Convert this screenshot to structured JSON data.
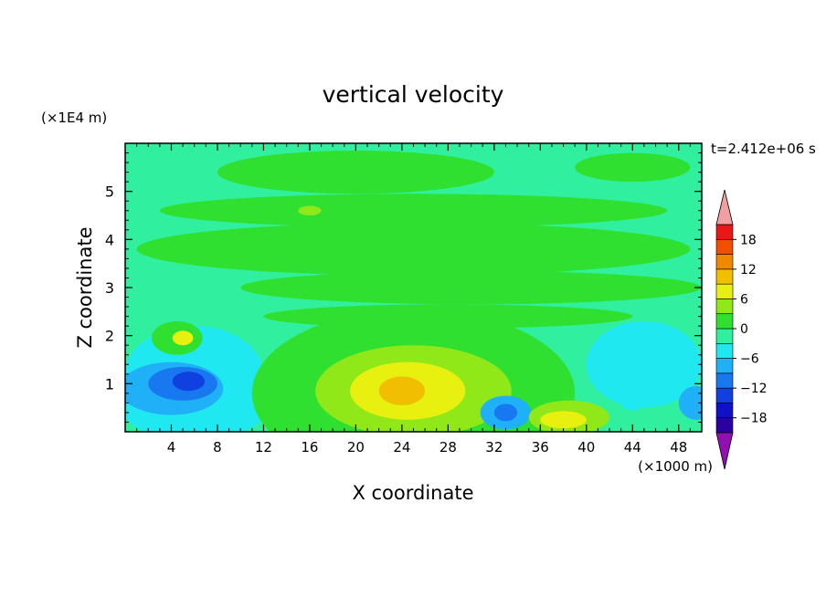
{
  "chart_data": {
    "type": "heatmap",
    "title": "vertical velocity",
    "time_label": "t=2.412e+06 s",
    "xlabel": "X coordinate",
    "ylabel": "Z coordinate",
    "x_unit": "(×1000 m)",
    "y_unit": "(×1E4 m)",
    "xlim": [
      0,
      50
    ],
    "ylim": [
      0,
      6
    ],
    "x_ticks": [
      4,
      8,
      12,
      16,
      20,
      24,
      28,
      32,
      36,
      40,
      44,
      48
    ],
    "y_ticks": [
      1,
      2,
      3,
      4,
      5
    ],
    "grid": false,
    "background_value": -2,
    "regions": [
      {
        "x": 6,
        "z": 0.6,
        "rx": 6.5,
        "rz": 0.8,
        "value": -5
      },
      {
        "x": 6,
        "z": 1.2,
        "rx": 6.0,
        "rz": 1.0,
        "value": -6
      },
      {
        "x": 4,
        "z": 0.9,
        "rx": 4.5,
        "rz": 0.55,
        "value": -9
      },
      {
        "x": 5,
        "z": 1.0,
        "rx": 3.0,
        "rz": 0.35,
        "value": -12
      },
      {
        "x": 5.5,
        "z": 1.05,
        "rx": 1.4,
        "rz": 0.2,
        "value": -14
      },
      {
        "x": 4.5,
        "z": 1.95,
        "rx": 2.2,
        "rz": 0.35,
        "value": 2
      },
      {
        "x": 5,
        "z": 1.95,
        "rx": 0.9,
        "rz": 0.15,
        "value": 6
      },
      {
        "x": 25,
        "z": 0.8,
        "rx": 14.0,
        "rz": 1.75,
        "value": 0
      },
      {
        "x": 25,
        "z": 0.8,
        "rx": 11.0,
        "rz": 1.35,
        "value": 2
      },
      {
        "x": 25,
        "z": 0.85,
        "rx": 8.5,
        "rz": 0.95,
        "value": 5
      },
      {
        "x": 24.5,
        "z": 0.85,
        "rx": 5.0,
        "rz": 0.6,
        "value": 8
      },
      {
        "x": 24,
        "z": 0.85,
        "rx": 2.0,
        "rz": 0.3,
        "value": 11
      },
      {
        "x": 33,
        "z": 0.4,
        "rx": 2.2,
        "rz": 0.35,
        "value": -8
      },
      {
        "x": 33,
        "z": 0.4,
        "rx": 1.0,
        "rz": 0.18,
        "value": -12
      },
      {
        "x": 38.5,
        "z": 0.3,
        "rx": 3.5,
        "rz": 0.35,
        "value": 3
      },
      {
        "x": 38,
        "z": 0.25,
        "rx": 2.0,
        "rz": 0.18,
        "value": 6
      },
      {
        "x": 45,
        "z": 1.4,
        "rx": 5.0,
        "rz": 0.9,
        "value": -4
      },
      {
        "x": 46,
        "z": 1.2,
        "rx": 2.5,
        "rz": 0.4,
        "value": -6
      },
      {
        "x": 49.5,
        "z": 0.6,
        "rx": 1.5,
        "rz": 0.35,
        "value": -8
      },
      {
        "x": 44,
        "z": 0.6,
        "rx": 1.0,
        "rz": 0.15,
        "value": -6
      },
      {
        "x": 20,
        "z": 5.4,
        "rx": 12.0,
        "rz": 0.45,
        "value": 0
      },
      {
        "x": 25,
        "z": 4.6,
        "rx": 22.0,
        "rz": 0.35,
        "value": 0
      },
      {
        "x": 25,
        "z": 3.8,
        "rx": 24.0,
        "rz": 0.55,
        "value": 0
      },
      {
        "x": 30,
        "z": 3.0,
        "rx": 20.0,
        "rz": 0.35,
        "value": 0
      },
      {
        "x": 44,
        "z": 5.5,
        "rx": 5.0,
        "rz": 0.3,
        "value": 0
      },
      {
        "x": 16,
        "z": 4.6,
        "rx": 1.0,
        "rz": 0.1,
        "value": 4
      },
      {
        "x": 28,
        "z": 2.4,
        "rx": 16.0,
        "rz": 0.25,
        "value": 0
      }
    ]
  },
  "colorbar": {
    "levels": [
      -21,
      -18,
      -15,
      -12,
      -9,
      -6,
      -3,
      0,
      3,
      6,
      9,
      12,
      15,
      18,
      21
    ],
    "labels": [
      "18",
      "12",
      "6",
      "0",
      "−6",
      "−12",
      "−18"
    ],
    "label_values": [
      18,
      12,
      6,
      0,
      -6,
      -12,
      -18
    ],
    "colors": [
      "#2a00a0",
      "#1010c8",
      "#1040e0",
      "#1878f0",
      "#20b0f8",
      "#20e8f0",
      "#30f0a0",
      "#30e030",
      "#90e818",
      "#e8f010",
      "#f0c000",
      "#f08800",
      "#f05000",
      "#e81818"
    ],
    "over_color": "#f0a0a0",
    "under_color": "#9010b0"
  }
}
